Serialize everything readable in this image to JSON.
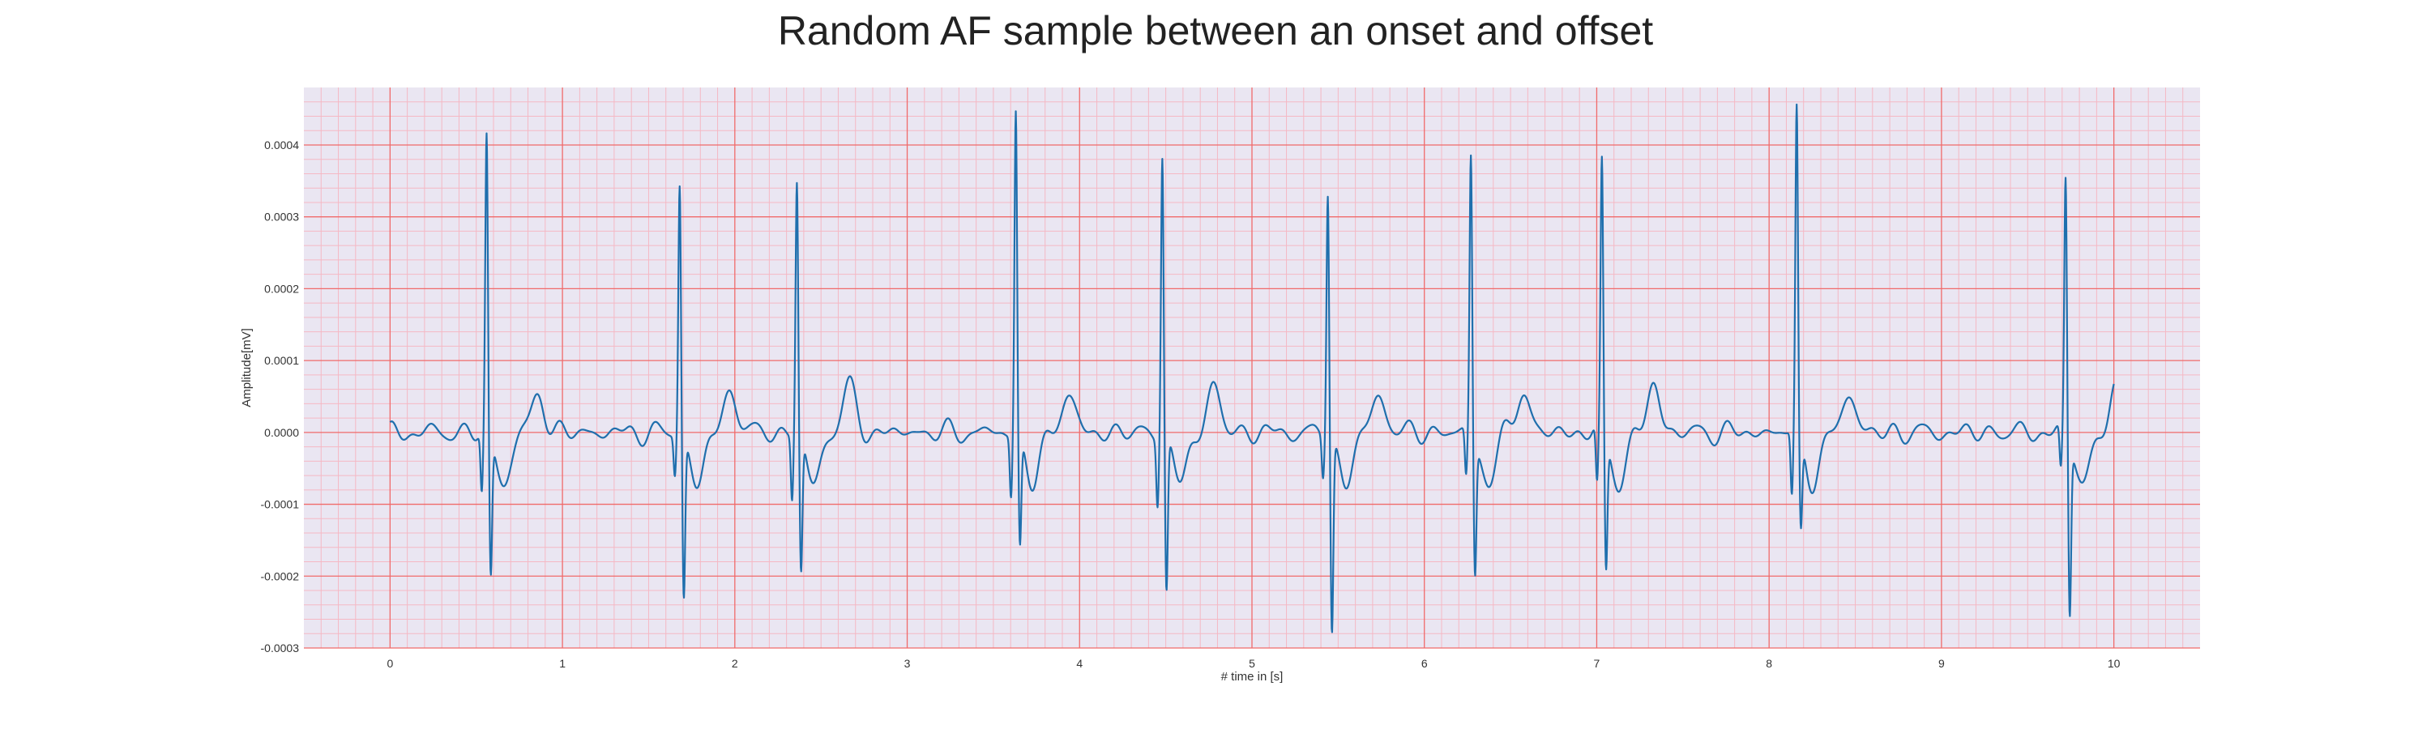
{
  "chart_data": {
    "type": "line",
    "title": "Random AF sample between an onset and offset",
    "xlabel": "# time in [s]",
    "ylabel": "Amplitude[mV]",
    "xlim": [
      -0.5,
      10.5
    ],
    "ylim": [
      -0.0003,
      0.00048
    ],
    "xticks": [
      0,
      1,
      2,
      3,
      4,
      5,
      6,
      7,
      8,
      9,
      10
    ],
    "xtick_labels": [
      "0",
      "1",
      "2",
      "3",
      "4",
      "5",
      "6",
      "7",
      "8",
      "9",
      "10"
    ],
    "yticks": [
      -0.0003,
      -0.0002,
      -0.0001,
      0.0,
      0.0001,
      0.0002,
      0.0003,
      0.0004
    ],
    "ytick_labels": [
      "-0.0003",
      "-0.0002",
      "-0.0001",
      "0.0000",
      "0.0001",
      "0.0002",
      "0.0003",
      "0.0004"
    ],
    "grid": true,
    "colors": {
      "line": "#1f6fad",
      "plot_background": "#eae6f2",
      "major_grid": "#f06a6a",
      "minor_grid": "#f5b8c4"
    },
    "series": [
      {
        "beats": [
          {
            "t": 0.56,
            "r": 0.00041,
            "q": -8.5e-05,
            "s": -0.000195
          },
          {
            "t": 1.68,
            "r": 0.00035,
            "q": -5.5e-05,
            "s": -0.000225
          },
          {
            "t": 2.36,
            "r": 0.00035,
            "q": -9e-05,
            "s": -0.00019
          },
          {
            "t": 3.63,
            "r": 0.00045,
            "q": -8.5e-05,
            "s": -0.000155
          },
          {
            "t": 4.48,
            "r": 0.000395,
            "q": -9e-05,
            "s": -0.000215
          },
          {
            "t": 5.44,
            "r": 0.000345,
            "q": -5.5e-05,
            "s": -0.00027
          },
          {
            "t": 6.27,
            "r": 0.00039,
            "q": -6.5e-05,
            "s": -0.000185
          },
          {
            "t": 7.03,
            "r": 0.000375,
            "q": -8e-05,
            "s": -0.000185
          },
          {
            "t": 8.16,
            "r": 0.00045,
            "q": -9e-05,
            "s": -0.00013
          },
          {
            "t": 9.72,
            "r": 0.000355,
            "q": -6e-05,
            "s": -0.00024
          }
        ],
        "t_start": 0.0,
        "t_end": 10.0
      }
    ]
  }
}
